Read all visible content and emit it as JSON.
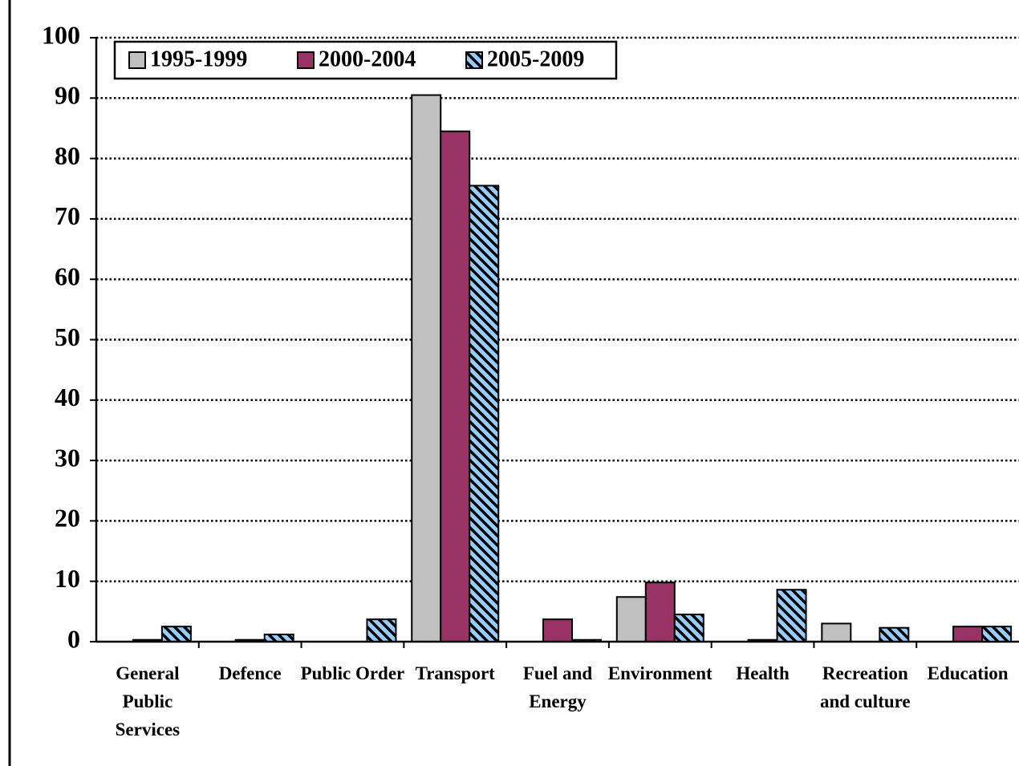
{
  "chart_data": {
    "type": "bar",
    "categories": [
      "General Public Services",
      "Defence",
      "Public Order",
      "Transport",
      "Fuel and Energy",
      "Environment",
      "Health",
      "Recreation and culture",
      "Education"
    ],
    "series": [
      {
        "name": "1995-1999",
        "color": "#c0c0c0",
        "values": [
          0,
          0,
          0,
          90.5,
          0,
          7.4,
          0,
          3.0,
          0
        ]
      },
      {
        "name": "2000-2004",
        "color": "#993366",
        "values": [
          0.3,
          0.3,
          0,
          84.5,
          3.7,
          9.8,
          0.3,
          0,
          2.5
        ]
      },
      {
        "name": "2005-2009",
        "color": "#99ccff",
        "pattern": "hatch",
        "values": [
          2.5,
          1.2,
          3.7,
          75.5,
          0.3,
          4.5,
          8.6,
          2.3,
          2.5
        ]
      }
    ],
    "ylim": [
      0,
      100
    ],
    "yticks": [
      0,
      10,
      20,
      30,
      40,
      50,
      60,
      70,
      80,
      90,
      100
    ],
    "grid": true,
    "legend": "top-left"
  }
}
